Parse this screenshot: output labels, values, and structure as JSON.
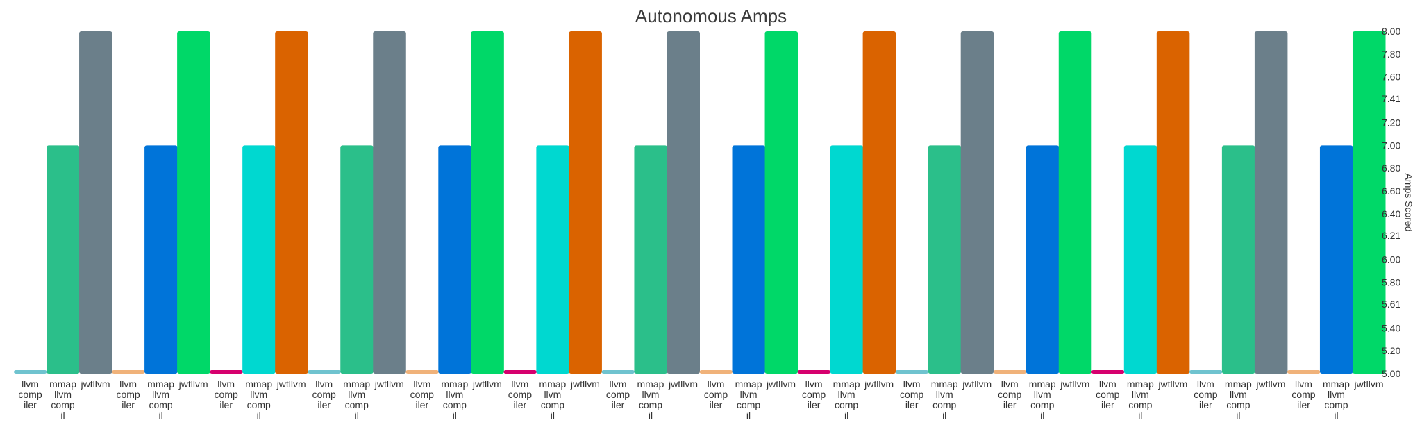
{
  "chart_data": {
    "type": "bar",
    "title": "Autonomous Amps",
    "ylabel": "Amps Scored",
    "xlabel": "",
    "ylim": [
      5.0,
      8.0
    ],
    "y_axis_side": "right",
    "grid": false,
    "legend": "none",
    "y_ticks": [
      "5.00",
      "5.20",
      "5.40",
      "5.61",
      "5.80",
      "6.00",
      "6.21",
      "6.40",
      "6.60",
      "6.80",
      "7.00",
      "7.20",
      "7.41",
      "7.60",
      "7.80",
      "8.00"
    ],
    "groups": [
      {
        "bars": [
          {
            "label": "llvmcompiler",
            "value": 5.0,
            "color": "#6fc3cf"
          },
          {
            "label": "mmapllvmcompil",
            "value": 7.0,
            "color": "#2bbf8a"
          },
          {
            "label": "jwtllvm",
            "value": 8.0,
            "color": "#6b7f8a"
          }
        ]
      },
      {
        "bars": [
          {
            "label": "llvmcompiler",
            "value": 5.0,
            "color": "#f0b27a"
          },
          {
            "label": "mmapllvmcompil",
            "value": 7.0,
            "color": "#0074d9"
          },
          {
            "label": "jwtllvm",
            "value": 8.0,
            "color": "#00d868"
          }
        ]
      },
      {
        "bars": [
          {
            "label": "llvmcompiler",
            "value": 5.0,
            "color": "#d6006e"
          },
          {
            "label": "mmapllvmcompil",
            "value": 7.0,
            "color": "#00d8d0"
          },
          {
            "label": "jwtllvm",
            "value": 8.0,
            "color": "#da6300"
          }
        ]
      },
      {
        "bars": [
          {
            "label": "llvmcompiler",
            "value": 5.0,
            "color": "#6fc3cf"
          },
          {
            "label": "mmapllvmcompil",
            "value": 7.0,
            "color": "#2bbf8a"
          },
          {
            "label": "jwtllvm",
            "value": 8.0,
            "color": "#6b7f8a"
          }
        ]
      },
      {
        "bars": [
          {
            "label": "llvmcompiler",
            "value": 5.0,
            "color": "#f0b27a"
          },
          {
            "label": "mmapllvmcompil",
            "value": 7.0,
            "color": "#0074d9"
          },
          {
            "label": "jwtllvm",
            "value": 8.0,
            "color": "#00d868"
          }
        ]
      },
      {
        "bars": [
          {
            "label": "llvmcompiler",
            "value": 5.0,
            "color": "#d6006e"
          },
          {
            "label": "mmapllvmcompil",
            "value": 7.0,
            "color": "#00d8d0"
          },
          {
            "label": "jwtllvm",
            "value": 8.0,
            "color": "#da6300"
          }
        ]
      },
      {
        "bars": [
          {
            "label": "llvmcompiler",
            "value": 5.0,
            "color": "#6fc3cf"
          },
          {
            "label": "mmapllvmcompil",
            "value": 7.0,
            "color": "#2bbf8a"
          },
          {
            "label": "jwtllvm",
            "value": 8.0,
            "color": "#6b7f8a"
          }
        ]
      },
      {
        "bars": [
          {
            "label": "llvmcompiler",
            "value": 5.0,
            "color": "#f0b27a"
          },
          {
            "label": "mmapllvmcompil",
            "value": 7.0,
            "color": "#0074d9"
          },
          {
            "label": "jwtllvm",
            "value": 8.0,
            "color": "#00d868"
          }
        ]
      },
      {
        "bars": [
          {
            "label": "llvmcompiler",
            "value": 5.0,
            "color": "#d6006e"
          },
          {
            "label": "mmapllvmcompil",
            "value": 7.0,
            "color": "#00d8d0"
          },
          {
            "label": "jwtllvm",
            "value": 8.0,
            "color": "#da6300"
          }
        ]
      },
      {
        "bars": [
          {
            "label": "llvmcompiler",
            "value": 5.0,
            "color": "#6fc3cf"
          },
          {
            "label": "mmapllvmcompil",
            "value": 7.0,
            "color": "#2bbf8a"
          },
          {
            "label": "jwtllvm",
            "value": 8.0,
            "color": "#6b7f8a"
          }
        ]
      },
      {
        "bars": [
          {
            "label": "llvmcompiler",
            "value": 5.0,
            "color": "#f0b27a"
          },
          {
            "label": "mmapllvmcompil",
            "value": 7.0,
            "color": "#0074d9"
          },
          {
            "label": "jwtllvm",
            "value": 8.0,
            "color": "#00d868"
          }
        ]
      },
      {
        "bars": [
          {
            "label": "llvmcompiler",
            "value": 5.0,
            "color": "#d6006e"
          },
          {
            "label": "mmapllvmcompil",
            "value": 7.0,
            "color": "#00d8d0"
          },
          {
            "label": "jwtllvm",
            "value": 8.0,
            "color": "#da6300"
          }
        ]
      },
      {
        "bars": [
          {
            "label": "llvmcompiler",
            "value": 5.0,
            "color": "#6fc3cf"
          },
          {
            "label": "mmapllvmcompil",
            "value": 7.0,
            "color": "#2bbf8a"
          },
          {
            "label": "jwtllvm",
            "value": 8.0,
            "color": "#6b7f8a"
          }
        ]
      },
      {
        "bars": [
          {
            "label": "llvmcompiler",
            "value": 5.0,
            "color": "#f0b27a"
          },
          {
            "label": "mmapllvmcompil",
            "value": 7.0,
            "color": "#0074d9"
          },
          {
            "label": "jwtllvm",
            "value": 8.0,
            "color": "#00d868"
          }
        ]
      }
    ]
  }
}
